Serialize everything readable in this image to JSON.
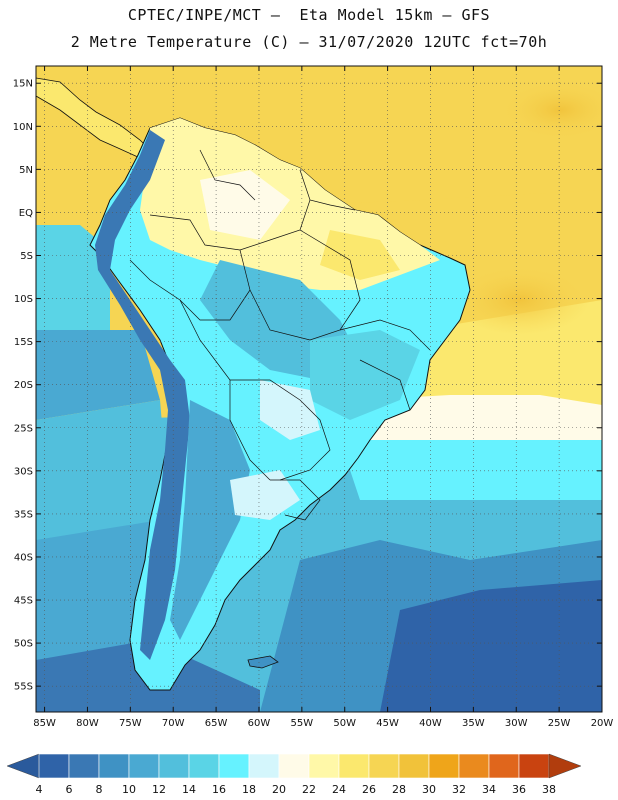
{
  "header": {
    "line1": "CPTEC/INPE/MCT –  Eta Model 15km – GFS",
    "line2": "2 Metre Temperature (C) – 31/07/2020 12UTC fct=70h"
  },
  "map": {
    "lat_labels": [
      "15N",
      "10N",
      "5N",
      "EQ",
      "5S",
      "10S",
      "15S",
      "20S",
      "25S",
      "30S",
      "35S",
      "40S",
      "45S",
      "50S",
      "55S"
    ],
    "lon_labels": [
      "85W",
      "80W",
      "75W",
      "70W",
      "65W",
      "60W",
      "55W",
      "50W",
      "45W",
      "40W",
      "35W",
      "30W",
      "25W",
      "20W"
    ],
    "lat_range": [
      -58,
      17
    ],
    "lon_range": [
      -86,
      -20
    ]
  },
  "legend": {
    "values": [
      "4",
      "6",
      "8",
      "10",
      "12",
      "14",
      "16",
      "18",
      "20",
      "22",
      "24",
      "26",
      "28",
      "30",
      "32",
      "34",
      "36",
      "38"
    ],
    "colors": [
      "#2f63a8",
      "#3a78b4",
      "#3f92c4",
      "#4aa9d2",
      "#52bfdc",
      "#5ad4e6",
      "#66f2ff",
      "#d4f6fc",
      "#fffbe8",
      "#fff8a8",
      "#fbe86e",
      "#f6d553",
      "#f1c23a",
      "#efa51a",
      "#ea8a1e",
      "#e0661c",
      "#c94310"
    ]
  }
}
